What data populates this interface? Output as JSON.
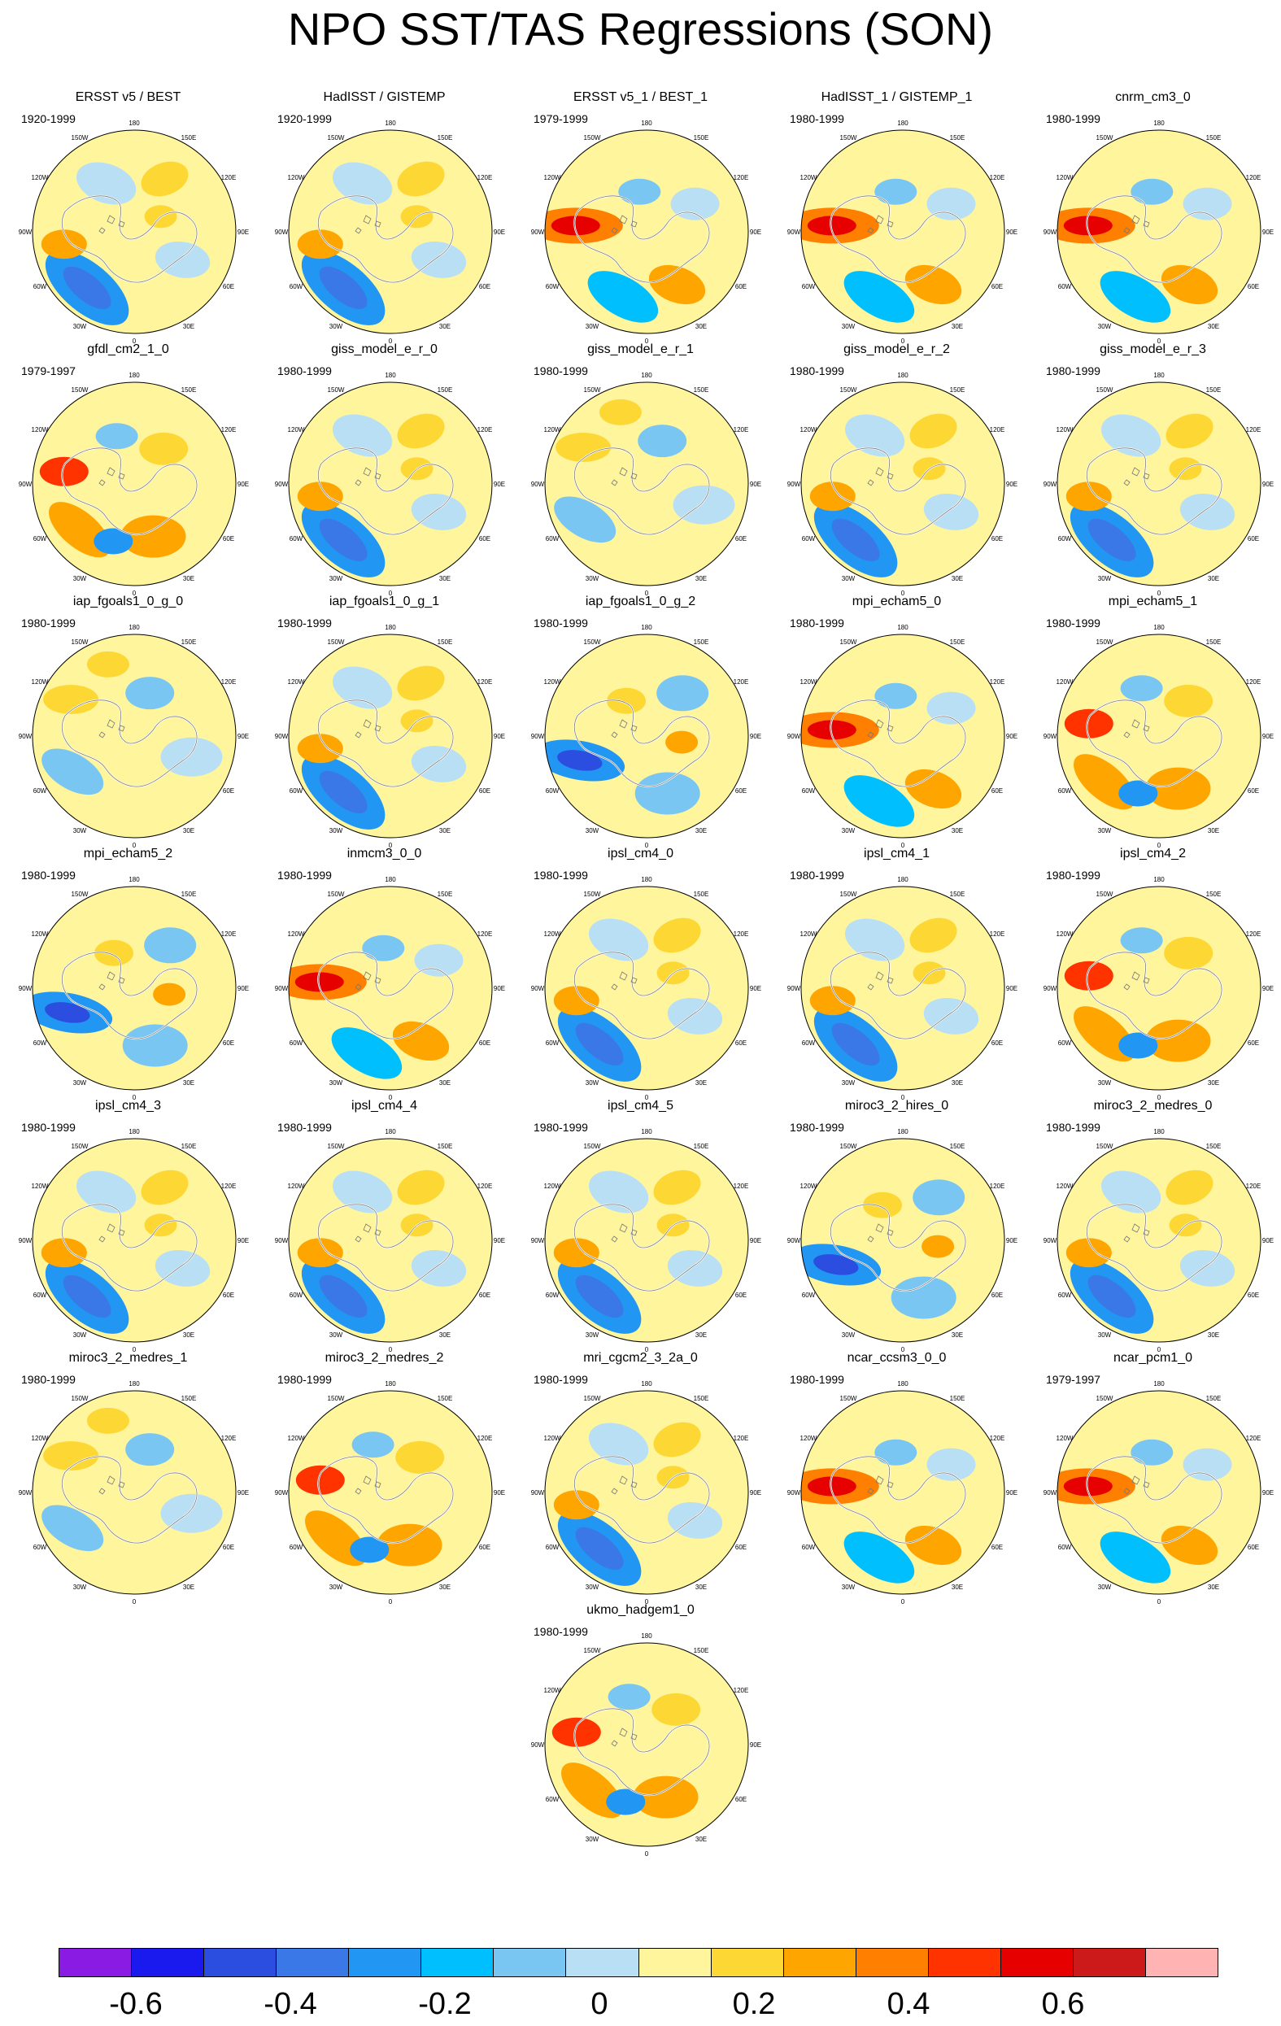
{
  "title": "NPO SST/TAS Regressions (SON)",
  "lon_labels": [
    "180",
    "150E",
    "120E",
    "90E",
    "60E",
    "30E",
    "0",
    "30W",
    "60W",
    "90W",
    "120W",
    "150W"
  ],
  "panels": [
    {
      "name": "ERSST v5 / BEST",
      "years": "1920-1999",
      "pattern": "neg_pac"
    },
    {
      "name": "HadISST / GISTEMP",
      "years": "1920-1999",
      "pattern": "neg_pac"
    },
    {
      "name": "ERSST v5_1 / BEST_1",
      "years": "1979-1999",
      "pattern": "dipole"
    },
    {
      "name": "HadISST_1 / GISTEMP_1",
      "years": "1980-1999",
      "pattern": "dipole"
    },
    {
      "name": "cnrm_cm3_0",
      "years": "1980-1999",
      "pattern": "dipole"
    },
    {
      "name": "gfdl_cm2_1_0",
      "years": "1979-1997",
      "pattern": "warm"
    },
    {
      "name": "giss_model_e_r_0",
      "years": "1980-1999",
      "pattern": "neg_pac"
    },
    {
      "name": "giss_model_e_r_1",
      "years": "1980-1999",
      "pattern": "weak"
    },
    {
      "name": "giss_model_e_r_2",
      "years": "1980-1999",
      "pattern": "neg_pac"
    },
    {
      "name": "giss_model_e_r_3",
      "years": "1980-1999",
      "pattern": "neg_pac"
    },
    {
      "name": "iap_fgoals1_0_g_0",
      "years": "1980-1999",
      "pattern": "weak"
    },
    {
      "name": "iap_fgoals1_0_g_1",
      "years": "1980-1999",
      "pattern": "neg_pac"
    },
    {
      "name": "iap_fgoals1_0_g_2",
      "years": "1980-1999",
      "pattern": "cool"
    },
    {
      "name": "mpi_echam5_0",
      "years": "1980-1999",
      "pattern": "dipole"
    },
    {
      "name": "mpi_echam5_1",
      "years": "1980-1999",
      "pattern": "warm"
    },
    {
      "name": "mpi_echam5_2",
      "years": "1980-1999",
      "pattern": "cool"
    },
    {
      "name": "inmcm3_0_0",
      "years": "1980-1999",
      "pattern": "dipole"
    },
    {
      "name": "ipsl_cm4_0",
      "years": "1980-1999",
      "pattern": "neg_pac"
    },
    {
      "name": "ipsl_cm4_1",
      "years": "1980-1999",
      "pattern": "neg_pac"
    },
    {
      "name": "ipsl_cm4_2",
      "years": "1980-1999",
      "pattern": "warm"
    },
    {
      "name": "ipsl_cm4_3",
      "years": "1980-1999",
      "pattern": "neg_pac"
    },
    {
      "name": "ipsl_cm4_4",
      "years": "1980-1999",
      "pattern": "neg_pac"
    },
    {
      "name": "ipsl_cm4_5",
      "years": "1980-1999",
      "pattern": "neg_pac"
    },
    {
      "name": "miroc3_2_hires_0",
      "years": "1980-1999",
      "pattern": "cool"
    },
    {
      "name": "miroc3_2_medres_0",
      "years": "1980-1999",
      "pattern": "neg_pac"
    },
    {
      "name": "miroc3_2_medres_1",
      "years": "1980-1999",
      "pattern": "weak"
    },
    {
      "name": "miroc3_2_medres_2",
      "years": "1980-1999",
      "pattern": "warm"
    },
    {
      "name": "mri_cgcm2_3_2a_0",
      "years": "1980-1999",
      "pattern": "neg_pac"
    },
    {
      "name": "ncar_ccsm3_0_0",
      "years": "1980-1999",
      "pattern": "dipole"
    },
    {
      "name": "ncar_pcm1_0",
      "years": "1979-1997",
      "pattern": "dipole"
    },
    {
      "name": "ukmo_hadgem1_0",
      "years": "1980-1999",
      "pattern": "warm"
    }
  ],
  "colorbar": {
    "colors": [
      "#8a1be2",
      "#1a1aee",
      "#2b4de0",
      "#3a78e8",
      "#2196f3",
      "#00bfff",
      "#79c6f2",
      "#b9dff5",
      "#fff59d",
      "#fdd835",
      "#ffa500",
      "#ff7f00",
      "#ff3300",
      "#e60000",
      "#cc1a1a",
      "#ffb3b3"
    ],
    "tick_labels": [
      "-0.6",
      "-0.4",
      "-0.2",
      "0",
      "0.2",
      "0.4",
      "0.6"
    ],
    "tick_values": [
      -0.6,
      -0.4,
      -0.2,
      0,
      0.2,
      0.4,
      0.6
    ],
    "min": -0.7,
    "max": 0.8
  }
}
